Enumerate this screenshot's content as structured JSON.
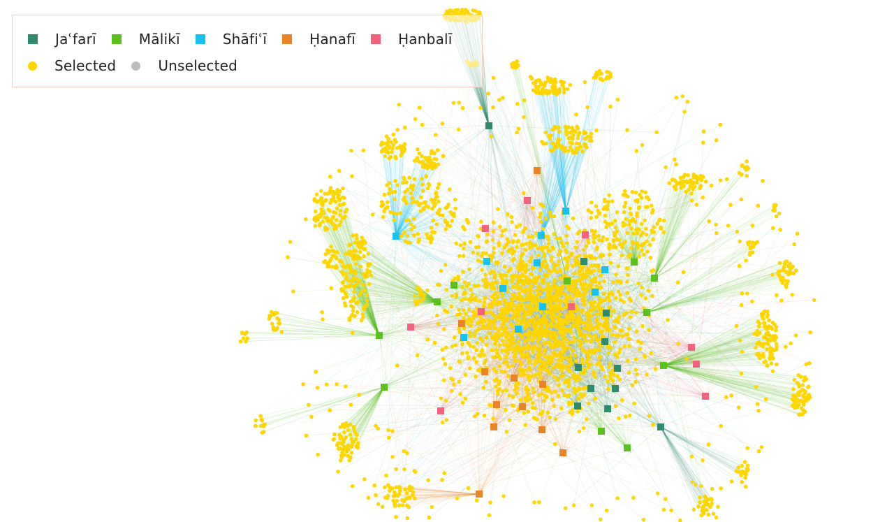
{
  "legend": {
    "schools": [
      {
        "label": "Jaʿfarī",
        "color": "#2e8b6e"
      },
      {
        "label": "Mālikī",
        "color": "#5ac21c"
      },
      {
        "label": "Shāfiʿī",
        "color": "#18c2f0"
      },
      {
        "label": "Ḥanafī",
        "color": "#ea8424"
      },
      {
        "label": "Ḥanbalī",
        "color": "#f2627f"
      }
    ],
    "states": [
      {
        "label": "Selected",
        "color": "#ffd600"
      },
      {
        "label": "Unselected",
        "color": "#bdbdbd"
      }
    ]
  }
}
